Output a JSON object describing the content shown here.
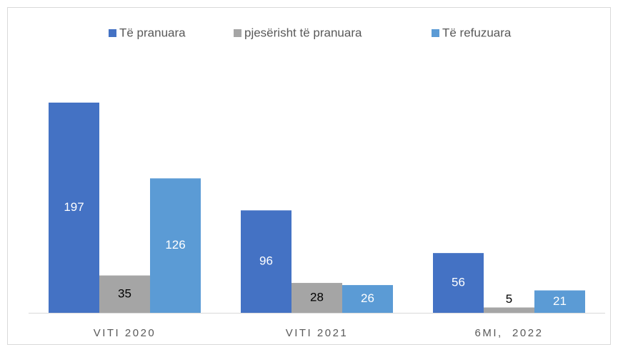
{
  "chart_data": {
    "type": "bar",
    "categories": [
      "VITI 2020",
      "VITI 2021",
      "6MI,  2022"
    ],
    "series": [
      {
        "name": "Të pranuara",
        "color": "#4472c4",
        "label_color": "#ffffff",
        "values": [
          197,
          96,
          56
        ]
      },
      {
        "name": "pjesërisht të pranuara",
        "color": "#a5a5a5",
        "label_color": "#000000",
        "values": [
          35,
          28,
          5
        ]
      },
      {
        "name": "Të refuzuara",
        "color": "#5b9bd5",
        "label_color": "#ffffff",
        "values": [
          126,
          26,
          21
        ]
      }
    ],
    "legend": "top",
    "grid": false
  }
}
